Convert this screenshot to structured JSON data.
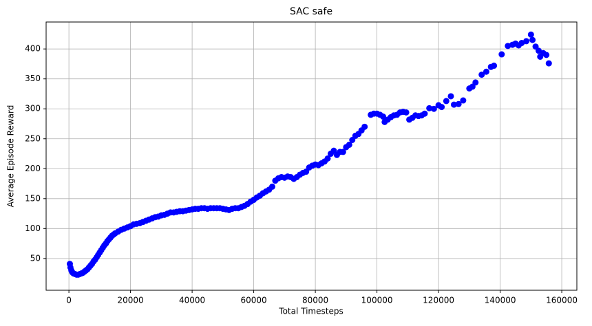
{
  "chart_data": {
    "type": "scatter",
    "title": "SAC safe",
    "x_label": "Total Timesteps",
    "y_label": "Average Episode Reward",
    "color": "#0000ff",
    "grid": true,
    "xlim": [
      -7400,
      164900
    ],
    "ylim": [
      -3,
      445
    ],
    "xticks": [
      0,
      20000,
      40000,
      60000,
      80000,
      100000,
      120000,
      140000,
      160000
    ],
    "yticks": [
      50,
      100,
      150,
      200,
      250,
      300,
      350,
      400
    ],
    "x": [
      300,
      500,
      800,
      1100,
      1500,
      2000,
      2500,
      3000,
      3500,
      4000,
      4500,
      5000,
      5500,
      6000,
      6500,
      7000,
      7500,
      8000,
      8500,
      9000,
      9500,
      10000,
      10500,
      11000,
      11500,
      12000,
      12500,
      13000,
      13500,
      14000,
      14500,
      15000,
      16000,
      17000,
      18000,
      19000,
      20000,
      21000,
      22000,
      23000,
      24000,
      25000,
      26000,
      27000,
      28000,
      29000,
      30000,
      31000,
      32000,
      33000,
      34000,
      35000,
      36000,
      37000,
      38000,
      39000,
      40000,
      41000,
      42000,
      43000,
      44000,
      45000,
      46000,
      47000,
      48000,
      49000,
      50000,
      51000,
      52000,
      53000,
      54000,
      55000,
      56000,
      57000,
      58000,
      59000,
      60000,
      61000,
      62000,
      63000,
      64000,
      65000,
      66000,
      67000,
      68000,
      69000,
      70000,
      71000,
      72000,
      73000,
      74000,
      75000,
      76000,
      77000,
      78000,
      79000,
      80000,
      81000,
      82000,
      83000,
      84000,
      85000,
      86000,
      87000,
      88000,
      89000,
      90000,
      91000,
      92000,
      93000,
      94000,
      95000,
      96000,
      98000,
      99000,
      100000,
      101000,
      102000,
      102500,
      103500,
      104500,
      105500,
      106500,
      107500,
      108500,
      109500,
      110500,
      111500,
      112500,
      113500,
      114500,
      115500,
      117000,
      118500,
      120000,
      121000,
      122500,
      124000,
      125000,
      126500,
      128000,
      130000,
      131000,
      132000,
      134000,
      135500,
      137000,
      138000,
      140500,
      142500,
      144000,
      145000,
      146000,
      147000,
      148500,
      150000,
      150500,
      151500,
      152500,
      153000,
      154000,
      155000,
      155800
    ],
    "y": [
      41,
      35,
      30,
      27,
      25,
      24,
      23,
      23,
      24,
      25,
      26,
      28,
      30,
      32,
      35,
      38,
      41,
      45,
      48,
      52,
      56,
      60,
      64,
      68,
      72,
      75,
      79,
      82,
      85,
      88,
      90,
      92,
      95,
      98,
      100,
      102,
      104,
      107,
      108,
      109,
      111,
      113,
      115,
      117,
      119,
      120,
      122,
      123,
      125,
      127,
      127,
      128,
      129,
      129,
      130,
      131,
      132,
      133,
      133,
      134,
      134,
      133,
      134,
      134,
      134,
      134,
      133,
      132,
      131,
      133,
      134,
      134,
      136,
      138,
      141,
      145,
      148,
      152,
      155,
      159,
      162,
      165,
      170,
      180,
      184,
      186,
      185,
      187,
      186,
      183,
      186,
      190,
      193,
      195,
      202,
      205,
      207,
      206,
      209,
      212,
      217,
      225,
      230,
      223,
      228,
      228,
      236,
      240,
      248,
      255,
      258,
      264,
      270,
      290,
      292,
      292,
      290,
      287,
      278,
      282,
      286,
      289,
      290,
      294,
      295,
      294,
      282,
      285,
      289,
      288,
      289,
      292,
      301,
      300,
      306,
      303,
      313,
      321,
      307,
      308,
      314,
      334,
      337,
      344,
      357,
      362,
      370,
      372,
      391,
      405,
      407,
      409,
      406,
      410,
      413,
      424,
      415,
      404,
      397,
      387,
      393,
      390,
      376
    ]
  }
}
